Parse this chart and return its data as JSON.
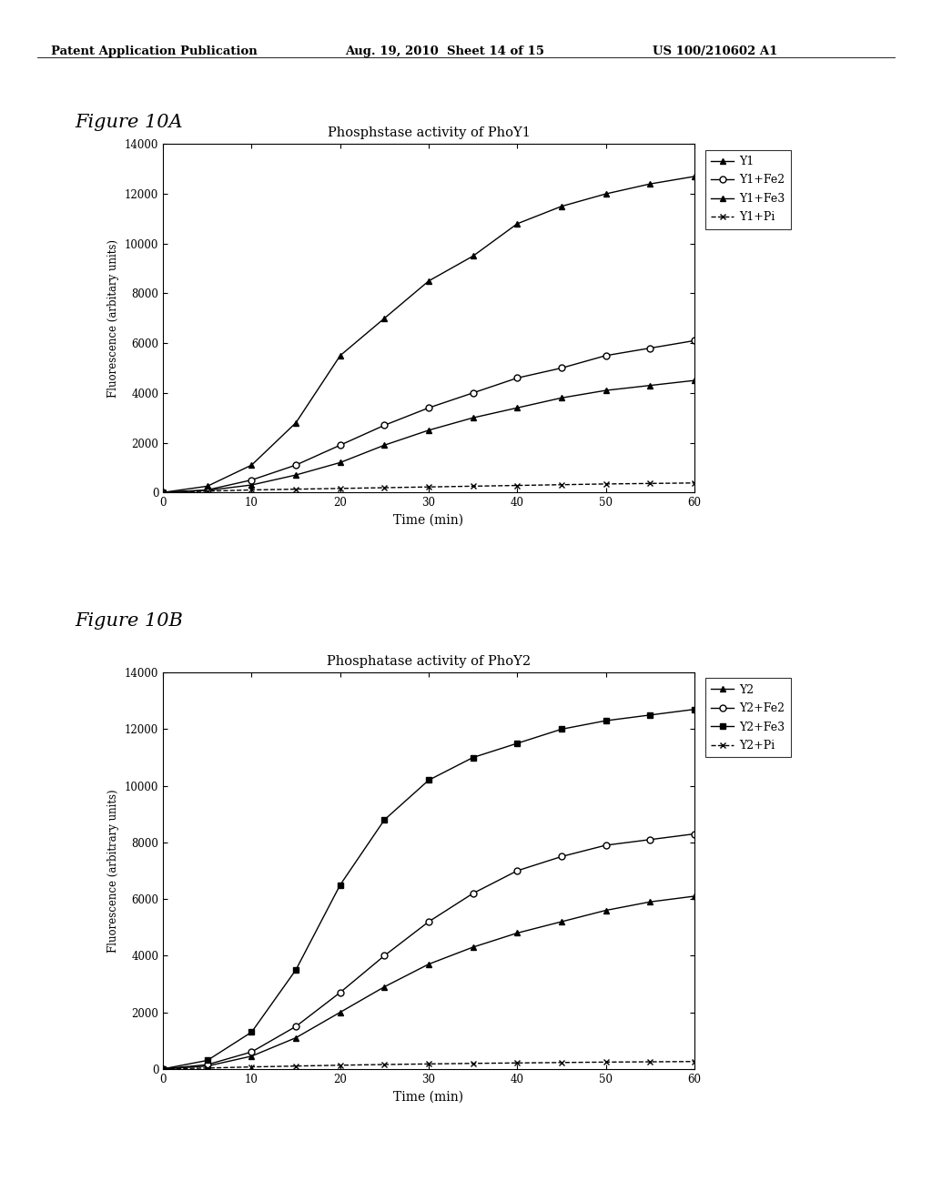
{
  "fig10A": {
    "title": "Phosphstase activity of PhoY1",
    "xlabel": "Time (min)",
    "ylabel": "Fluorescence (arbitary units)",
    "xlim": [
      0,
      60
    ],
    "ylim": [
      0,
      14000
    ],
    "yticks": [
      0,
      2000,
      4000,
      6000,
      8000,
      10000,
      12000,
      14000
    ],
    "xticks": [
      0,
      10,
      20,
      30,
      40,
      50,
      60
    ],
    "time": [
      0,
      5,
      10,
      15,
      20,
      25,
      30,
      35,
      40,
      45,
      50,
      55,
      60
    ],
    "series": [
      {
        "key": "Y1",
        "values": [
          0,
          80,
          300,
          700,
          1200,
          1900,
          2500,
          3000,
          3400,
          3800,
          4100,
          4300,
          4500
        ],
        "marker": "^",
        "markersize": 5,
        "linestyle": "-",
        "color": "#000000",
        "fillstyle": "full",
        "label": "Y1"
      },
      {
        "key": "Y1+Fe2",
        "values": [
          0,
          100,
          500,
          1100,
          1900,
          2700,
          3400,
          4000,
          4600,
          5000,
          5500,
          5800,
          6100
        ],
        "marker": "o",
        "markersize": 5,
        "linestyle": "-",
        "color": "#000000",
        "fillstyle": "none",
        "label": "Y1+Fe2"
      },
      {
        "key": "Y1+Fe3",
        "values": [
          0,
          250,
          1100,
          2800,
          5500,
          7000,
          8500,
          9500,
          10800,
          11500,
          12000,
          12400,
          12700
        ],
        "marker": "^",
        "markersize": 5,
        "linestyle": "-",
        "color": "#000000",
        "fillstyle": "full",
        "label": "Y1+Fe3"
      },
      {
        "key": "Y1+Pi",
        "values": [
          0,
          50,
          100,
          130,
          160,
          190,
          220,
          250,
          280,
          310,
          340,
          360,
          380
        ],
        "marker": "x",
        "markersize": 5,
        "linestyle": "--",
        "color": "#000000",
        "fillstyle": "full",
        "label": "Y1+Pi"
      }
    ]
  },
  "fig10B": {
    "title": "Phosphatase activity of PhoY2",
    "xlabel": "Time (min)",
    "ylabel": "Fluorescence (arbitrary units)",
    "xlim": [
      0,
      60
    ],
    "ylim": [
      0,
      14000
    ],
    "yticks": [
      0,
      2000,
      4000,
      6000,
      8000,
      10000,
      12000,
      14000
    ],
    "xticks": [
      0,
      10,
      20,
      30,
      40,
      50,
      60
    ],
    "time": [
      0,
      5,
      10,
      15,
      20,
      25,
      30,
      35,
      40,
      45,
      50,
      55,
      60
    ],
    "series": [
      {
        "key": "Y2",
        "values": [
          0,
          100,
          450,
          1100,
          2000,
          2900,
          3700,
          4300,
          4800,
          5200,
          5600,
          5900,
          6100
        ],
        "marker": "^",
        "markersize": 5,
        "linestyle": "-",
        "color": "#000000",
        "fillstyle": "full",
        "label": "Y2"
      },
      {
        "key": "Y2+Fe2",
        "values": [
          0,
          150,
          600,
          1500,
          2700,
          4000,
          5200,
          6200,
          7000,
          7500,
          7900,
          8100,
          8300
        ],
        "marker": "o",
        "markersize": 5,
        "linestyle": "-",
        "color": "#000000",
        "fillstyle": "none",
        "label": "Y2+Fe2"
      },
      {
        "key": "Y2+Fe3",
        "values": [
          0,
          300,
          1300,
          3500,
          6500,
          8800,
          10200,
          11000,
          11500,
          12000,
          12300,
          12500,
          12700
        ],
        "marker": "s",
        "markersize": 5,
        "linestyle": "-",
        "color": "#000000",
        "fillstyle": "full",
        "label": "Y2+Fe3"
      },
      {
        "key": "Y2+Pi",
        "values": [
          0,
          30,
          70,
          100,
          130,
          155,
          175,
          195,
          210,
          225,
          240,
          250,
          260
        ],
        "marker": "x",
        "markersize": 5,
        "linestyle": "--",
        "color": "#000000",
        "fillstyle": "full",
        "label": "Y2+Pi"
      }
    ]
  },
  "header_col1": "Patent Application Publication",
  "header_col2": "Aug. 19, 2010  Sheet 14 of 15",
  "header_col3": "US 100/210602 A1",
  "fig_label_A": "Figure 10A",
  "fig_label_B": "Figure 10B",
  "background_color": "#ffffff",
  "font_family": "serif"
}
